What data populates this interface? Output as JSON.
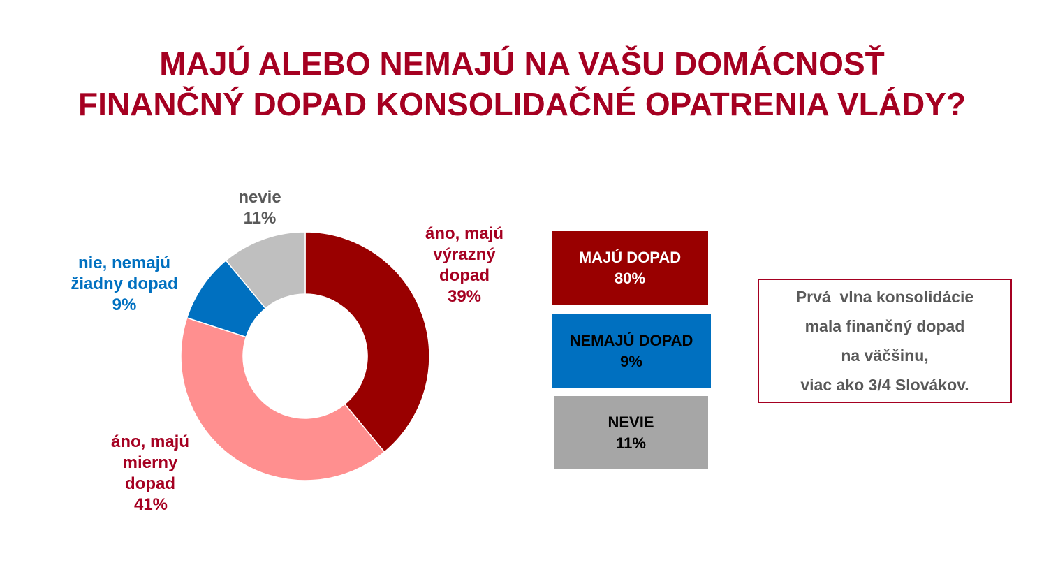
{
  "title": {
    "line1": "MAJÚ ALEBO NEMAJÚ NA VAŠU DOMÁCNOSŤ",
    "line2": "FINANČNÝ DOPAD KONSOLIDAČNÉ OPATRENIA VLÁDY?"
  },
  "chart_data": {
    "type": "pie",
    "donut": true,
    "slices": [
      {
        "label": "áno, majú výrazný dopad",
        "label_lines": "áno, majú\nvýrazný\ndopad",
        "value": 39,
        "display": "39%",
        "color": "#990000",
        "label_color": "#A50021"
      },
      {
        "label": "áno, majú mierny dopad",
        "label_lines": "áno, majú\nmierny\ndopad",
        "value": 41,
        "display": "41%",
        "color": "#FF8F8F",
        "label_color": "#A50021"
      },
      {
        "label": "nie, nemajú žiadny dopad",
        "label_lines": "nie, nemajú\nžiadny dopad",
        "value": 9,
        "display": "9%",
        "color": "#0070C0",
        "label_color": "#0070C0"
      },
      {
        "label": "nevie",
        "label_lines": "nevie",
        "value": 11,
        "display": "11%",
        "color": "#BFBFBF",
        "label_color": "#595959"
      }
    ]
  },
  "summary": [
    {
      "label": "MAJÚ DOPAD",
      "value": "80%",
      "bg": "#990000",
      "fg": "#ffffff"
    },
    {
      "label": "NEMAJÚ DOPAD",
      "value": "9%",
      "bg": "#0070C0",
      "fg": "#000000"
    },
    {
      "label": "NEVIE",
      "value": "11%",
      "bg": "#A6A6A6",
      "fg": "#000000"
    }
  ],
  "note": {
    "lines": [
      "Prvá  vlna konsolidácie",
      "mala finančný dopad",
      "na väčšinu,",
      "viac ako 3/4 Slovákov."
    ],
    "border_color": "#A50021"
  }
}
